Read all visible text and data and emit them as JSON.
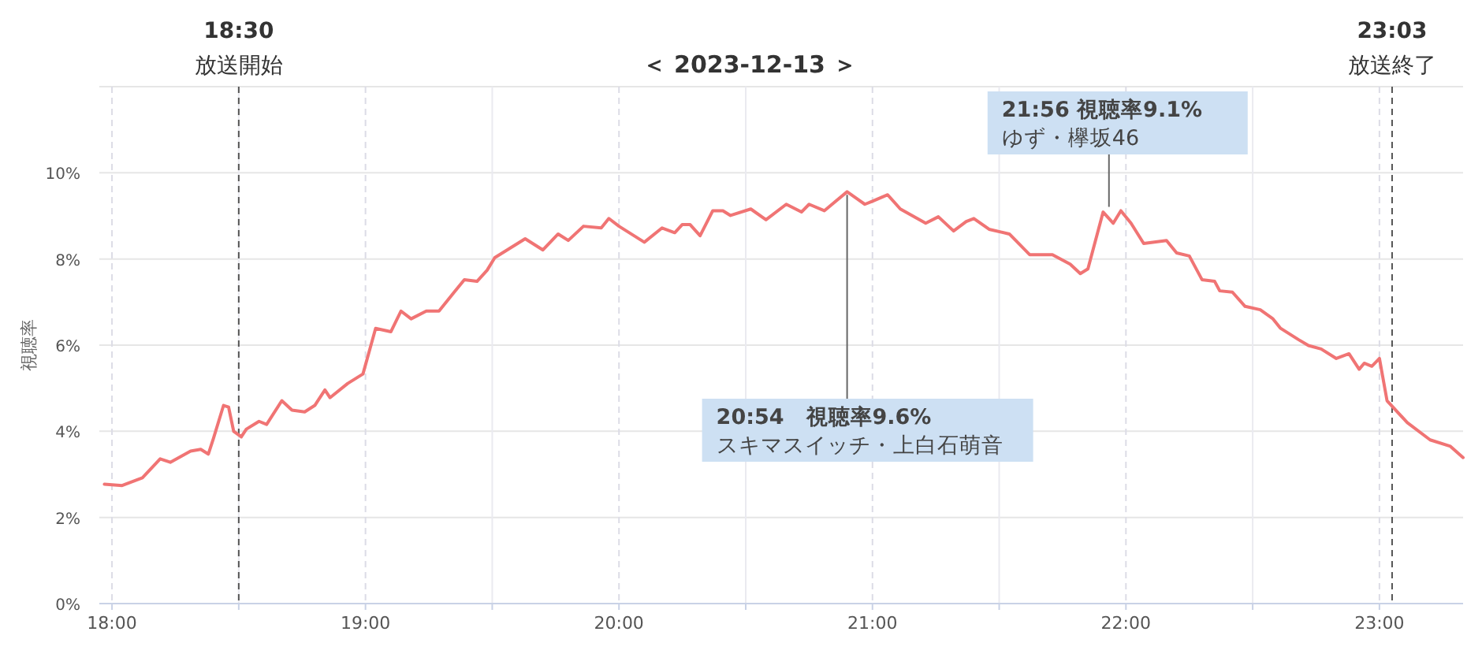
{
  "chart_data": {
    "type": "line",
    "title": "＜ 2023-12-13 ＞",
    "ylabel": "視聴率",
    "x": [
      17.97,
      18.04,
      18.12,
      18.19,
      18.23,
      18.31,
      18.35,
      18.38,
      18.4,
      18.44,
      18.46,
      18.48,
      18.51,
      18.53,
      18.58,
      18.61,
      18.67,
      18.71,
      18.76,
      18.8,
      18.84,
      18.86,
      18.93,
      18.99,
      19.04,
      19.1,
      19.14,
      19.18,
      19.24,
      19.29,
      19.35,
      19.39,
      19.44,
      19.48,
      19.51,
      19.57,
      19.63,
      19.7,
      19.76,
      19.8,
      19.86,
      19.93,
      19.96,
      20.0,
      20.1,
      20.17,
      20.22,
      20.25,
      20.28,
      20.32,
      20.37,
      20.41,
      20.44,
      20.52,
      20.58,
      20.66,
      20.72,
      20.75,
      20.81,
      20.9,
      20.97,
      21.0,
      21.06,
      21.11,
      21.21,
      21.26,
      21.32,
      21.37,
      21.4,
      21.46,
      21.54,
      21.62,
      21.71,
      21.78,
      21.82,
      21.85,
      21.91,
      21.95,
      21.98,
      22.02,
      22.07,
      22.16,
      22.2,
      22.25,
      22.3,
      22.35,
      22.37,
      22.42,
      22.47,
      22.53,
      22.58,
      22.61,
      22.68,
      22.72,
      22.77,
      22.83,
      22.88,
      22.92,
      22.94,
      22.97,
      23.0,
      23.03,
      23.11,
      23.2,
      23.28,
      23.33
    ],
    "series": [
      {
        "color": "#f07474",
        "values": [
          2.77,
          2.74,
          2.92,
          3.36,
          3.28,
          3.54,
          3.58,
          3.47,
          3.83,
          4.6,
          4.56,
          4.0,
          3.87,
          4.05,
          4.23,
          4.16,
          4.71,
          4.49,
          4.45,
          4.6,
          4.96,
          4.78,
          5.11,
          5.33,
          6.39,
          6.31,
          6.79,
          6.61,
          6.79,
          6.79,
          7.23,
          7.52,
          7.48,
          7.74,
          8.03,
          8.25,
          8.47,
          8.21,
          8.58,
          8.43,
          8.76,
          8.72,
          8.94,
          8.76,
          8.39,
          8.72,
          8.61,
          8.8,
          8.8,
          8.54,
          9.12,
          9.12,
          9.01,
          9.16,
          8.91,
          9.27,
          9.09,
          9.27,
          9.12,
          9.56,
          9.27,
          9.34,
          9.49,
          9.16,
          8.83,
          8.98,
          8.65,
          8.87,
          8.94,
          8.69,
          8.58,
          8.1,
          8.1,
          7.88,
          7.66,
          7.77,
          9.09,
          8.83,
          9.12,
          8.83,
          8.36,
          8.43,
          8.14,
          8.07,
          7.52,
          7.48,
          7.26,
          7.23,
          6.9,
          6.82,
          6.61,
          6.39,
          6.13,
          5.99,
          5.91,
          5.69,
          5.8,
          5.44,
          5.58,
          5.51,
          5.69,
          4.71,
          4.2,
          3.8,
          3.65,
          3.39
        ]
      }
    ],
    "xlim": [
      17.95,
      23.33
    ],
    "xticks": [
      {
        "value": 18,
        "label": "18:00"
      },
      {
        "value": 18.5,
        "label": null
      },
      {
        "value": 19,
        "label": "19:00"
      },
      {
        "value": 19.5,
        "label": null
      },
      {
        "value": 20,
        "label": "20:00"
      },
      {
        "value": 20.5,
        "label": null
      },
      {
        "value": 21,
        "label": "21:00"
      },
      {
        "value": 21.5,
        "label": null
      },
      {
        "value": 22,
        "label": "22:00"
      },
      {
        "value": 22.5,
        "label": null
      },
      {
        "value": 23,
        "label": "23:00"
      }
    ],
    "ylim": [
      0,
      12
    ],
    "yticks": [
      {
        "value": 0,
        "label": "0%"
      },
      {
        "value": 2,
        "label": "2%"
      },
      {
        "value": 4,
        "label": "4%"
      },
      {
        "value": 6,
        "label": "6%"
      },
      {
        "value": 8,
        "label": "8%"
      },
      {
        "value": 10,
        "label": "10%"
      },
      {
        "value": 12,
        "label": null
      }
    ],
    "grid": true,
    "ref_lines": [
      {
        "axis": "x",
        "value": 18.5,
        "label": "18:30\n放送開始",
        "color": "#555555",
        "line_style": "dashed"
      },
      {
        "axis": "x",
        "value": 23.05,
        "label": "23:03\n放送終了",
        "color": "#555555",
        "line_style": "dashed"
      }
    ],
    "annotations": [
      {
        "text": "20:54　視聴率9.6%\nスキマスイッチ・上白石萌音",
        "x": 20.9,
        "y": 9.6
      },
      {
        "text": "21:56 視聴率9.1%\nゆず・欅坂46",
        "x": 21.933,
        "y": 9.1
      }
    ]
  }
}
